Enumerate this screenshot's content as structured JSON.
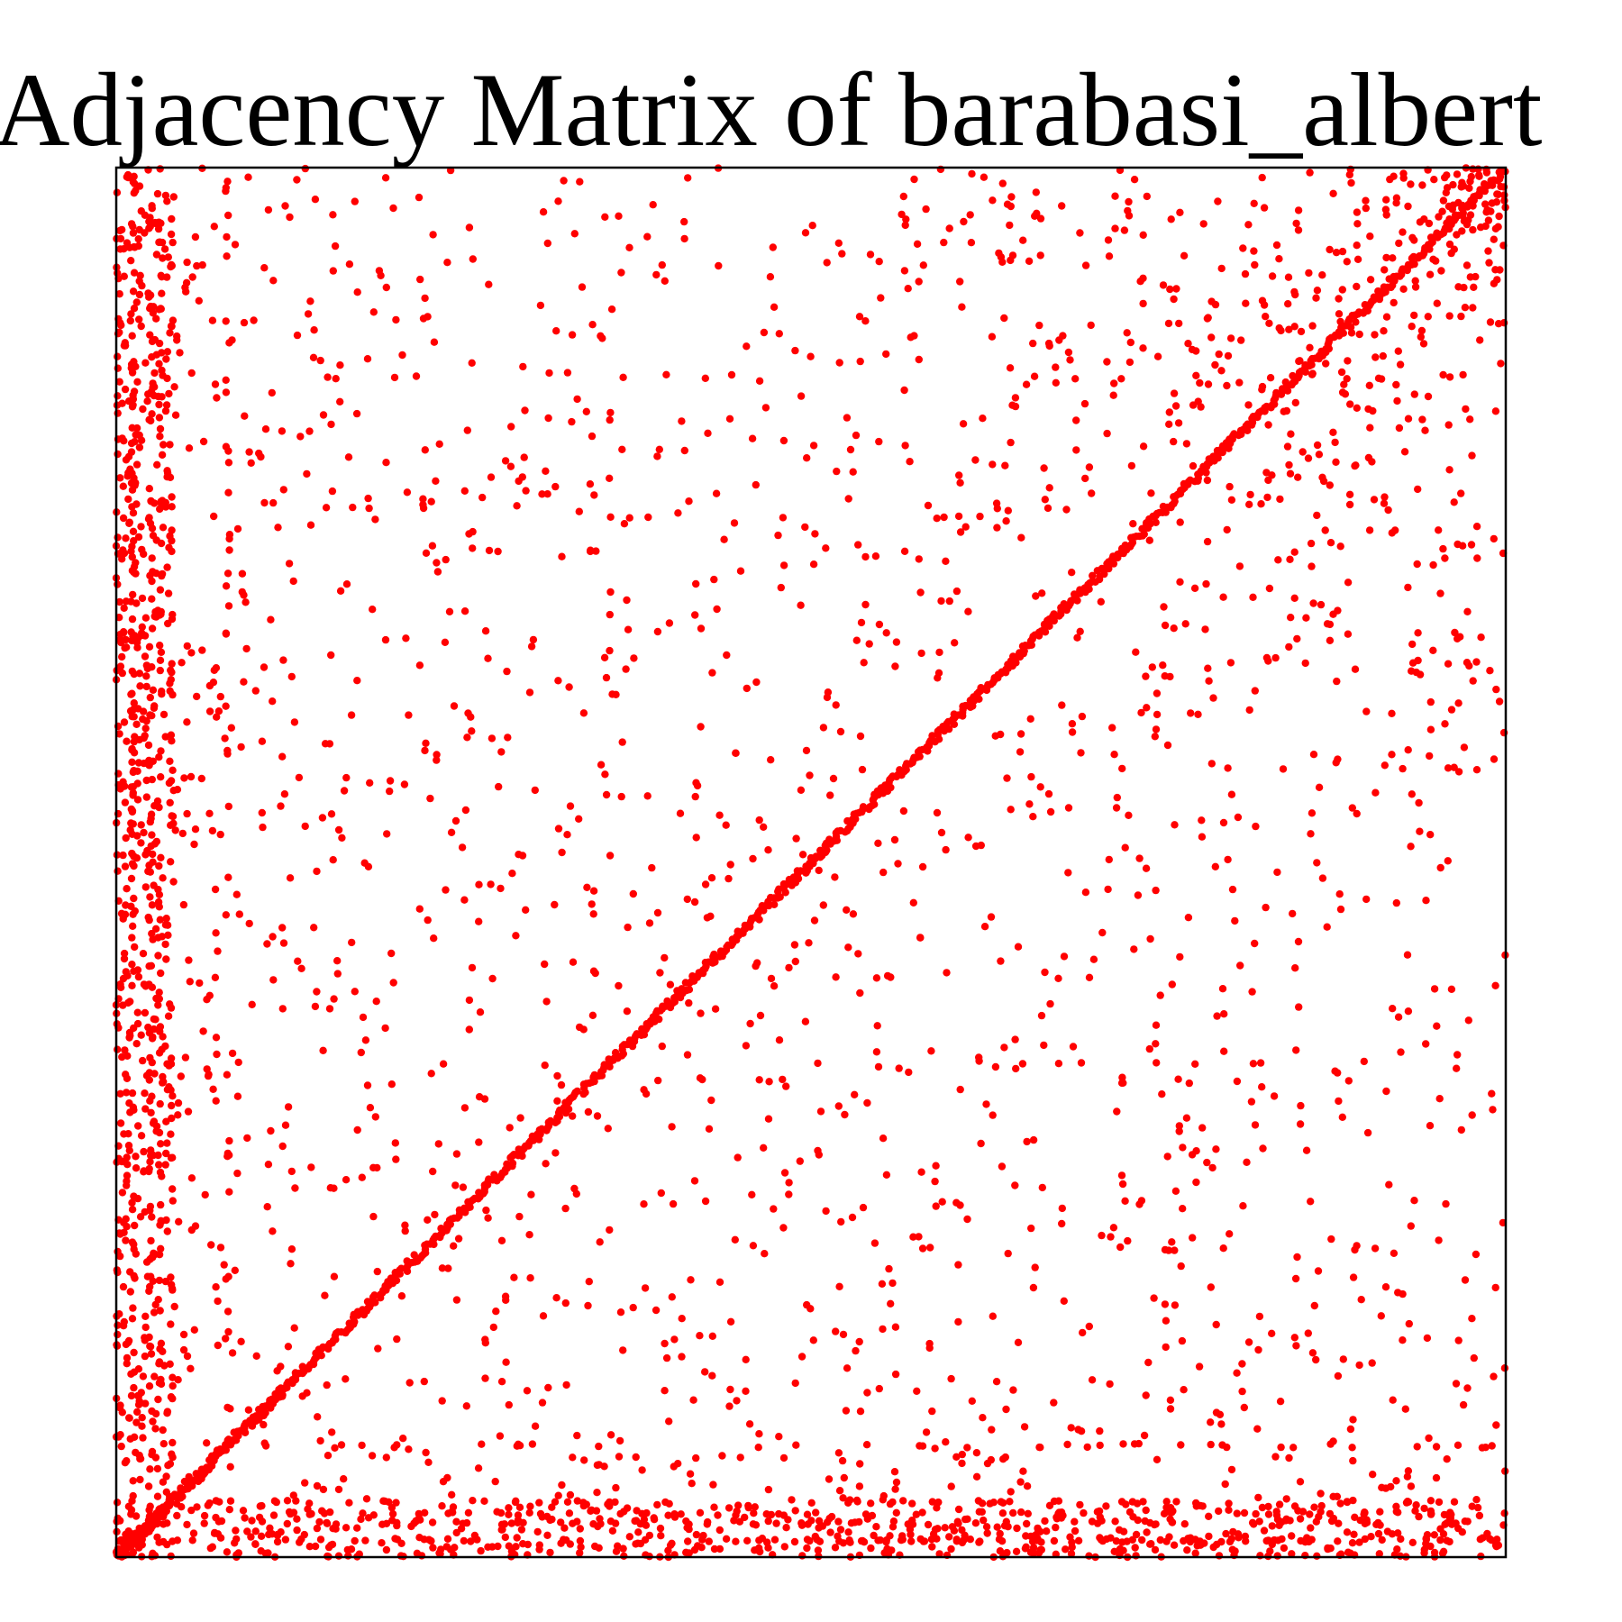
{
  "title": "Adjacency Matrix of barabasi_albert",
  "chart_data": {
    "type": "scatter",
    "title": "Adjacency Matrix of barabasi_albert",
    "xlabel": "",
    "ylabel": "",
    "axes_visible": false,
    "ticks_visible": false,
    "grid": false,
    "legend": "none",
    "marker": "filled circle",
    "marker_color": "#ff0000",
    "frame_color": "#000000",
    "matrix_size": 1000,
    "xlim": [
      0,
      1000
    ],
    "ylim": [
      0,
      1000
    ],
    "origin": "bottom-left",
    "diagonal": {
      "from": [
        0,
        0
      ],
      "to": [
        1000,
        1000
      ],
      "dense": true
    },
    "structure": "symmetric sparse adjacency of a Barabasi-Albert graph: dense band along the main diagonal, dense first columns (x < 40) and first rows (y < 40) from early hub nodes, sparse points elsewhere; high-degree hubs form dotted columns",
    "hub_columns": [
      12,
      25,
      32,
      40,
      80
    ],
    "hub_rows": [
      12,
      25,
      32,
      40,
      80
    ]
  }
}
